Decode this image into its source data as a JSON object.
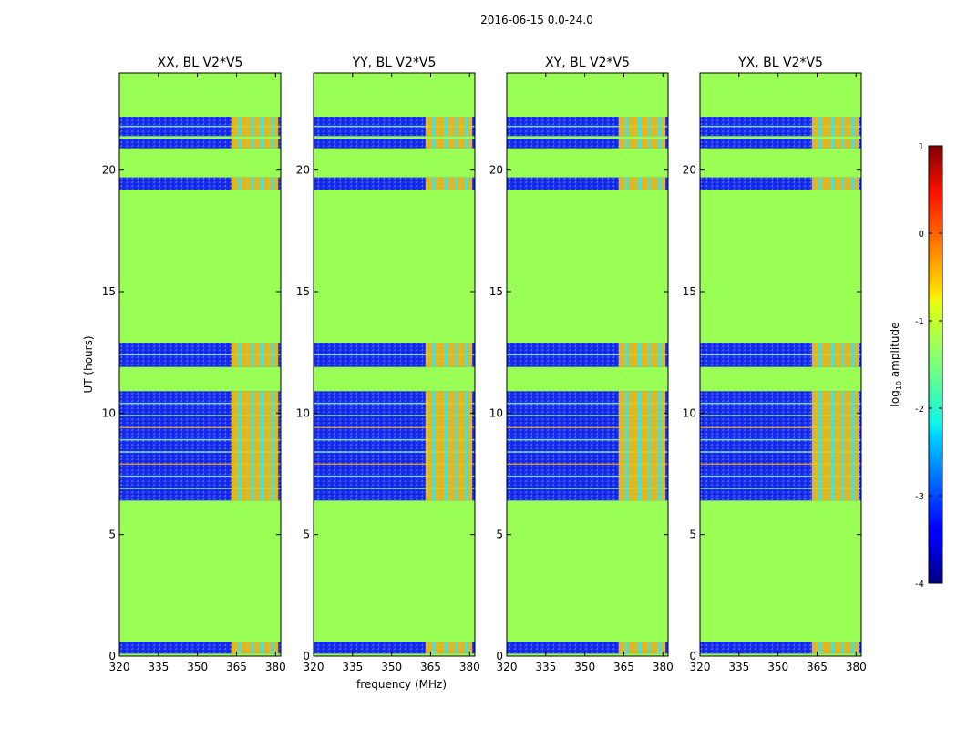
{
  "figure_title": "2016-06-15 0.0-24.0",
  "chart_data": [
    {
      "type": "heatmap",
      "title": "XX, BL V2*V5",
      "xlabel": "",
      "ylabel": "UT (hours)",
      "xlim": [
        320,
        382
      ],
      "ylim": [
        0,
        24
      ],
      "xticks": [
        320,
        335,
        350,
        365,
        380
      ],
      "yticks": [
        0,
        5,
        10,
        15,
        20
      ]
    },
    {
      "type": "heatmap",
      "title": "YY, BL V2*V5",
      "xlabel": "frequency (MHz)",
      "ylabel": "",
      "xlim": [
        320,
        382
      ],
      "ylim": [
        0,
        24
      ],
      "xticks": [
        320,
        335,
        350,
        365,
        380
      ],
      "yticks": [
        0,
        5,
        10,
        15,
        20
      ]
    },
    {
      "type": "heatmap",
      "title": "XY, BL V2*V5",
      "xlabel": "",
      "ylabel": "",
      "xlim": [
        320,
        382
      ],
      "ylim": [
        0,
        24
      ],
      "xticks": [
        320,
        335,
        350,
        365,
        380
      ],
      "yticks": [
        0,
        5,
        10,
        15,
        20
      ]
    },
    {
      "type": "heatmap",
      "title": "YX, BL V2*V5",
      "xlabel": "",
      "ylabel": "",
      "xlim": [
        320,
        382
      ],
      "ylim": [
        0,
        24
      ],
      "xticks": [
        320,
        335,
        350,
        365,
        380
      ],
      "yticks": [
        0,
        5,
        10,
        15,
        20
      ]
    }
  ],
  "data_bands_hours": [
    [
      0.1,
      0.6
    ],
    [
      6.4,
      10.9
    ],
    [
      11.9,
      12.9
    ],
    [
      19.2,
      19.7
    ],
    [
      20.9,
      21.3
    ],
    [
      21.4,
      22.2
    ]
  ],
  "rfi_band_mhz": [
    363,
    381
  ],
  "colorbar": {
    "label": "log10 amplitude",
    "label_main": "log",
    "label_sub": "10",
    "label_rest": " amplitude",
    "ticks": [
      1,
      0,
      -1,
      -2,
      -3,
      -4
    ],
    "range": [
      -4,
      1
    ]
  },
  "colors": {
    "flagged": "#99ff55",
    "noise": "#1a2cf0",
    "rfi": "#f2c80f",
    "cyan": "#33e8f0"
  }
}
